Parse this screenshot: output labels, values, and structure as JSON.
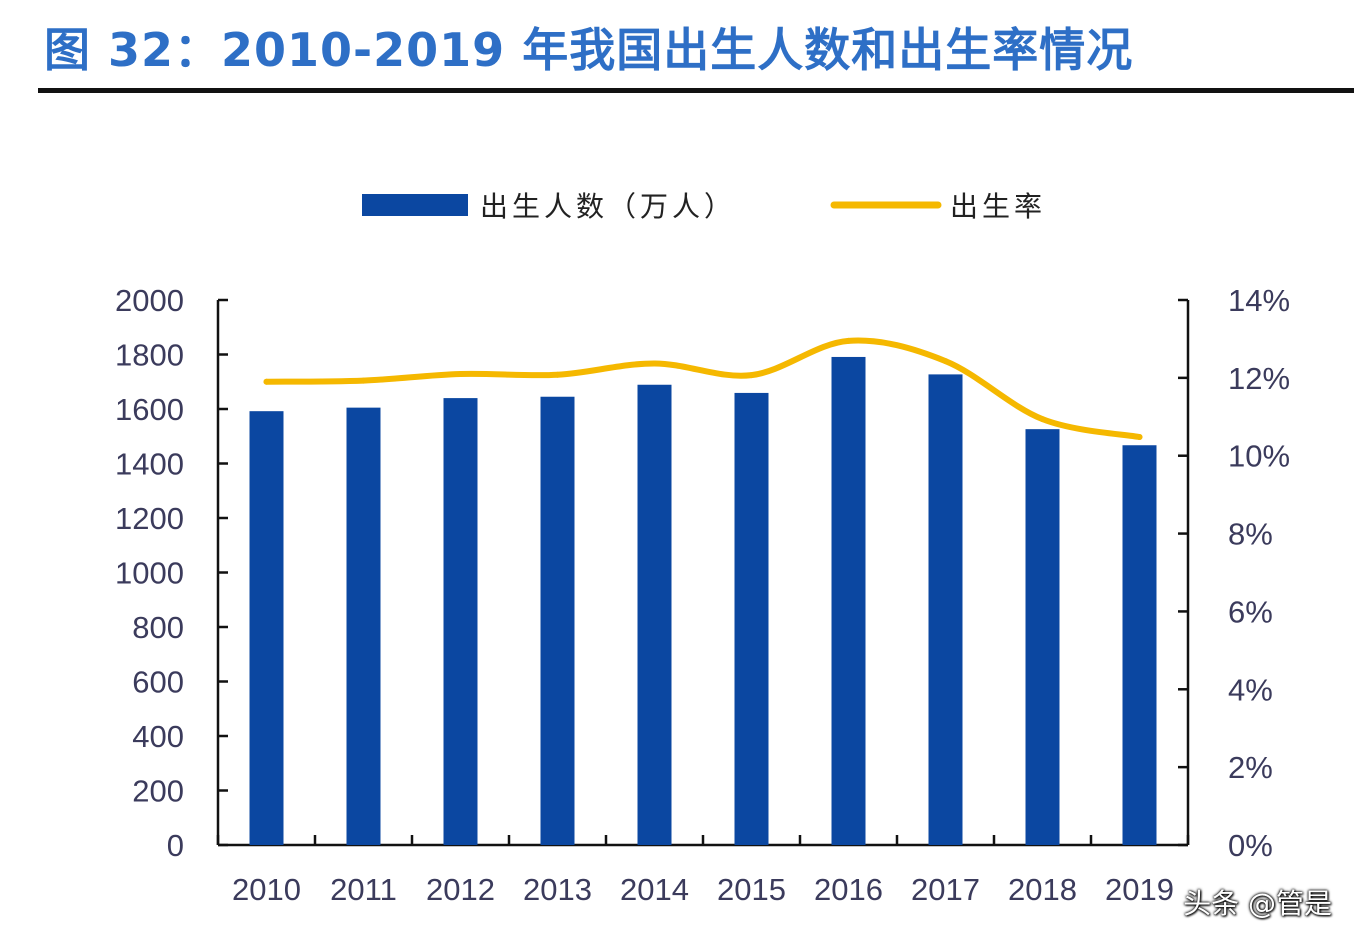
{
  "figure_title": "图 32：2010-2019 年我国出生人数和出生率情况",
  "watermark": "头条 @管是",
  "colors": {
    "bar": "#0b47a1",
    "line": "#f5b800",
    "title": "#2e6fc6",
    "axis": "#111111"
  },
  "chart_data": {
    "type": "bar",
    "title": "",
    "categories": [
      "2010",
      "2011",
      "2012",
      "2013",
      "2014",
      "2015",
      "2016",
      "2017",
      "2018",
      "2019"
    ],
    "series": [
      {
        "name": "出生人数（万人）",
        "type": "bar",
        "axis": "left",
        "values": [
          1592,
          1605,
          1640,
          1645,
          1689,
          1659,
          1791,
          1727,
          1526,
          1467
        ]
      },
      {
        "name": "出生率",
        "type": "line",
        "axis": "right",
        "values": [
          11.9,
          11.93,
          12.1,
          12.08,
          12.37,
          12.07,
          12.95,
          12.43,
          10.94,
          10.48
        ]
      }
    ],
    "y_left": {
      "min": 0,
      "max": 2000,
      "ticks": [
        "0",
        "200",
        "400",
        "600",
        "800",
        "1000",
        "1200",
        "1400",
        "1600",
        "1800",
        "2000"
      ]
    },
    "y_right": {
      "min": 0,
      "max": 14,
      "ticks": [
        "0%",
        "2%",
        "4%",
        "6%",
        "8%",
        "10%",
        "12%",
        "14%"
      ]
    },
    "legend_position": "top-center",
    "grid": false
  }
}
